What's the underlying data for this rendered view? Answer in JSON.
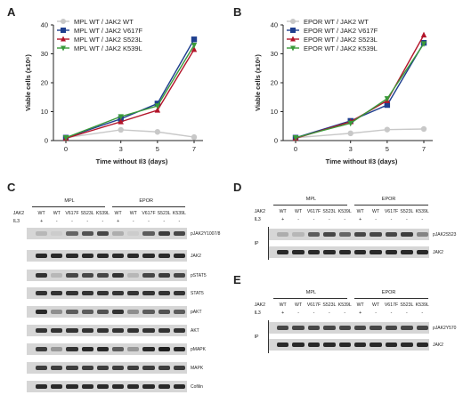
{
  "panels": {
    "A": "A",
    "B": "B",
    "C": "C",
    "D": "D",
    "E": "E"
  },
  "chart_data": [
    {
      "type": "line",
      "panel": "A",
      "x": [
        0,
        3,
        5,
        7
      ],
      "xlabel": "Time without Il3 (days)",
      "ylabel": "Viable cells (x10⁶)",
      "ylim": [
        0,
        40
      ],
      "yticks": [
        0,
        10,
        20,
        30,
        40
      ],
      "legend_position": "top-left",
      "series": [
        {
          "name": "MPL WT / JAK2 WT",
          "color": "#c8c8c8",
          "marker": "circle",
          "values": [
            1,
            3.7,
            3.0,
            1.2
          ]
        },
        {
          "name": "MPL WT / JAK2 V617F",
          "color": "#1f3f8f",
          "marker": "square",
          "values": [
            1,
            7.5,
            12.8,
            35
          ]
        },
        {
          "name": "MPL WT / JAK2 S523L",
          "color": "#b3152a",
          "marker": "triangle-up",
          "values": [
            0.8,
            6.5,
            10.5,
            31.5
          ]
        },
        {
          "name": "MPL WT / JAK2 K539L",
          "color": "#3a9a3a",
          "marker": "triangle-down",
          "values": [
            1,
            8.3,
            12.0,
            33
          ]
        }
      ]
    },
    {
      "type": "line",
      "panel": "B",
      "x": [
        0,
        3,
        5,
        7
      ],
      "xlabel": "Time without Il3 (days)",
      "ylabel": "Viable cells (x10⁶)",
      "ylim": [
        0,
        40
      ],
      "yticks": [
        0,
        10,
        20,
        30,
        40
      ],
      "legend_position": "top-left",
      "series": [
        {
          "name": "EPOR WT / JAK2 WT",
          "color": "#c8c8c8",
          "marker": "circle",
          "values": [
            1,
            2.5,
            3.8,
            4.0
          ]
        },
        {
          "name": "EPOR WT / JAK2 V617F",
          "color": "#1f3f8f",
          "marker": "square",
          "values": [
            1,
            6.8,
            12.3,
            33.8
          ]
        },
        {
          "name": "EPOR WT / JAK2 S523L",
          "color": "#b3152a",
          "marker": "triangle-up",
          "values": [
            0.8,
            6.5,
            13.8,
            36.5
          ]
        },
        {
          "name": "EPOR WT / JAK2 K539L",
          "color": "#3a9a3a",
          "marker": "triangle-down",
          "values": [
            1,
            6.0,
            14.5,
            33.5
          ]
        }
      ]
    }
  ],
  "blots": {
    "C": {
      "group_labels": [
        "MPL",
        "EPOR"
      ],
      "row_headers": [
        "JAK2",
        "IL3"
      ],
      "lanes": [
        "WT",
        "WT",
        "V617F",
        "S523L",
        "K539L",
        "WT",
        "WT",
        "V617F",
        "S523L",
        "K539L"
      ],
      "il3": [
        "+",
        "-",
        "-",
        "-",
        "-",
        "+",
        "-",
        "-",
        "-",
        "-"
      ],
      "bands": [
        "pJAK2Y1007/8",
        "JAK2",
        "pSTAT5",
        "STAT5",
        "pAKT",
        "AKT",
        "pMAPK",
        "MAPK",
        "Cofilin"
      ]
    },
    "D": {
      "group_labels": [
        "MPL",
        "EPOR"
      ],
      "row_headers": [
        "JAK2",
        "IL3"
      ],
      "ip": "IP",
      "lanes": [
        "WT",
        "WT",
        "V617F",
        "S523L",
        "K539L",
        "WT",
        "WT",
        "V617F",
        "S523L",
        "K539L"
      ],
      "il3": [
        "+",
        "-",
        "-",
        "-",
        "-",
        "+",
        "-",
        "-",
        "-",
        "-"
      ],
      "bands": [
        "pJAK2S523",
        "JAK2"
      ]
    },
    "E": {
      "group_labels": [
        "MPL",
        "EPOR"
      ],
      "row_headers": [
        "JAK2",
        "IL3"
      ],
      "ip": "IP",
      "lanes": [
        "WT",
        "WT",
        "V617F",
        "S523L",
        "K539L",
        "WT",
        "WT",
        "V617F",
        "S523L",
        "K539L"
      ],
      "il3": [
        "+",
        "-",
        "-",
        "-",
        "-",
        "+",
        "-",
        "-",
        "-",
        "-"
      ],
      "bands": [
        "pJAK2Y570",
        "JAK2"
      ]
    }
  }
}
